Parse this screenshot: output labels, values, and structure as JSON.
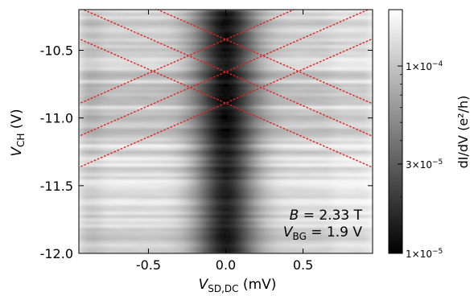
{
  "chart_data": {
    "type": "heatmap",
    "title": "",
    "xlabel": {
      "main": "V",
      "sub": "SD,DC",
      "unit": " (mV)"
    },
    "ylabel": {
      "main": "V",
      "sub": "CH",
      "unit": " (V)"
    },
    "xlim": [
      -0.95,
      0.95
    ],
    "ylim": [
      -12.0,
      -10.2
    ],
    "x_ticks": [
      -0.5,
      0.0,
      0.5
    ],
    "x_tick_labels": [
      "-0.5",
      "0.0",
      "0.5"
    ],
    "y_ticks": [
      -10.5,
      -11.0,
      -11.5,
      -12.0
    ],
    "y_tick_labels": [
      "-10.5",
      "-11.0",
      "-11.5",
      "-12.0"
    ],
    "colorbar": {
      "scale": "log",
      "range": [
        1e-05,
        0.0002
      ],
      "label": "dI/dV (e²/h)",
      "ticks": [
        1e-05,
        3e-05,
        0.0001
      ],
      "tick_labels": [
        {
          "mant": "1",
          "exp": "−5"
        },
        {
          "mant": "3",
          "exp": "−5"
        },
        {
          "mant": "1",
          "exp": "−4"
        }
      ],
      "colormap": "gray"
    },
    "annotations": [
      {
        "var": "B",
        "sub": "",
        "value": " = 2.33 T"
      },
      {
        "var": "V",
        "sub": "BG",
        "value": " = 1.9 V"
      }
    ],
    "overlay_lines": {
      "color": "#e02020",
      "style": "dotted",
      "diamond_vertices_vch": [
        -10.42,
        -10.66,
        -10.89
      ],
      "diamond_slope_v_per_mv": 0.5
    },
    "grid": false
  }
}
